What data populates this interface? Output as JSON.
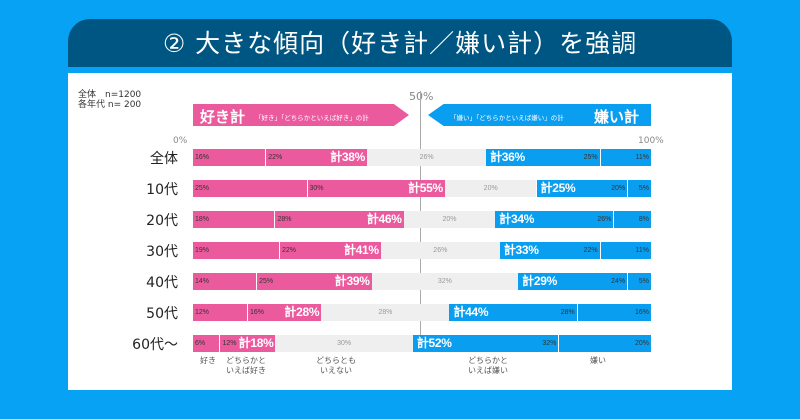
{
  "title": "② 大きな傾向（好き計／嫌い計）を強調",
  "notes": [
    "全体　n=1200",
    "各年代  n= 200"
  ],
  "like_banner": {
    "title": "好き計",
    "sub": "「好き」「どちらかといえば好き」の計"
  },
  "dislike_banner": {
    "title": "嫌い計",
    "sub": "「嫌い」「どちらかといえば嫌い」の計"
  },
  "colors": {
    "like": "#ec5a9e",
    "neutral": "#efefef",
    "dislike": "#0a9ef0",
    "background": "#08a2f5",
    "header": "#005682"
  },
  "chart_data": {
    "type": "bar",
    "stacked": true,
    "orientation": "horizontal",
    "xlim": [
      0,
      100
    ],
    "tick_labels": [
      "0%",
      "50%",
      "100%"
    ],
    "categories": [
      "全体",
      "10代",
      "20代",
      "30代",
      "40代",
      "50代",
      "60代～"
    ],
    "series": [
      {
        "name": "好き",
        "values": [
          16,
          25,
          18,
          19,
          14,
          12,
          6
        ]
      },
      {
        "name": "どちらかといえば好き",
        "values": [
          22,
          30,
          28,
          22,
          25,
          16,
          12
        ]
      },
      {
        "name": "どちらともいえない",
        "values": [
          26,
          20,
          20,
          26,
          32,
          28,
          30
        ]
      },
      {
        "name": "どちらかといえば嫌い",
        "values": [
          25,
          20,
          26,
          22,
          24,
          28,
          32
        ]
      },
      {
        "name": "嫌い",
        "values": [
          11,
          5,
          8,
          11,
          5,
          16,
          20
        ]
      }
    ],
    "like_totals": [
      "計38%",
      "計55%",
      "計46%",
      "計41%",
      "計39%",
      "計28%",
      "計18%"
    ],
    "dislike_totals": [
      "計36%",
      "計25%",
      "計34%",
      "計33%",
      "計29%",
      "計44%",
      "計52%"
    ],
    "legend_labels": [
      "好き",
      "どちらかと\nいえば好き",
      "どちらとも\nいえない",
      "どちらかと\nいえば嫌い",
      "嫌い"
    ]
  }
}
